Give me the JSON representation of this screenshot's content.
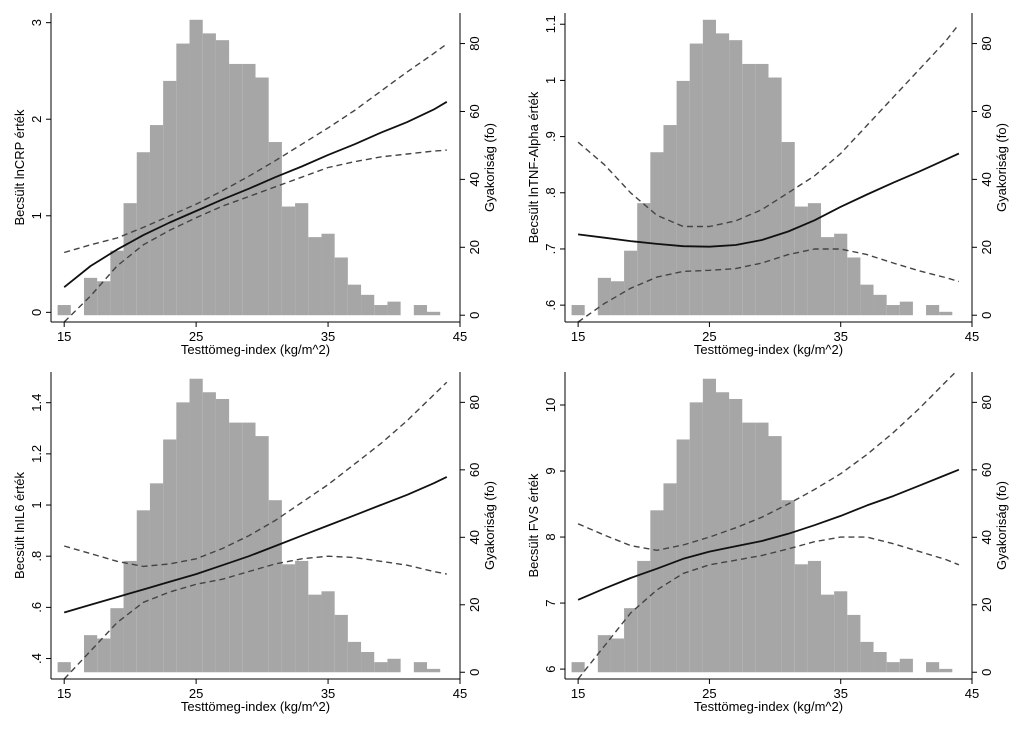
{
  "chart_data": [
    {
      "type": "bar",
      "xlabel": "Testtömeg-index (kg/m^2)",
      "ylabel": "Becsült lnCRP érték",
      "y2label": "Gyakoriság (fo)",
      "x_ticks": [
        "15",
        "25",
        "35",
        "45"
      ],
      "y_ticks": [
        "0",
        "1",
        "2",
        "3"
      ],
      "y2_ticks": [
        "0",
        "20",
        "40",
        "60",
        "80"
      ],
      "xlim": [
        14,
        45
      ],
      "ylim": [
        -0.1,
        3.1
      ],
      "y2lim": [
        -2,
        89
      ],
      "histogram": {
        "bin_width": 1,
        "bin_starts": [
          14.5,
          16.5,
          17.5,
          18.5,
          19.5,
          20.5,
          21.5,
          22.5,
          23.5,
          24.5,
          25.5,
          26.5,
          27.5,
          28.5,
          29.5,
          30.5,
          31.5,
          32.5,
          33.5,
          34.5,
          35.5,
          36.5,
          37.5,
          38.5,
          39.5,
          41.5,
          42.5
        ],
        "counts": [
          3,
          11,
          10,
          19,
          33,
          48,
          56,
          69,
          80,
          87,
          83,
          81,
          74,
          74,
          70,
          51,
          32,
          33,
          23,
          24,
          17,
          9,
          6,
          3,
          4,
          3,
          1
        ]
      },
      "series": [
        {
          "x": [
            15,
            17,
            19,
            21,
            23,
            25,
            27,
            29,
            31,
            33,
            35,
            37,
            39,
            41,
            43,
            44
          ],
          "y": [
            0.26,
            0.48,
            0.65,
            0.8,
            0.93,
            1.05,
            1.17,
            1.28,
            1.4,
            1.51,
            1.63,
            1.74,
            1.86,
            1.97,
            2.1,
            2.18
          ]
        },
        {
          "x": [
            15,
            17,
            19,
            21,
            23,
            25,
            27,
            29,
            31,
            33,
            35,
            37,
            39,
            41,
            43,
            44
          ],
          "y": [
            0.62,
            0.7,
            0.77,
            0.88,
            1.0,
            1.12,
            1.26,
            1.41,
            1.57,
            1.74,
            1.91,
            2.09,
            2.29,
            2.49,
            2.68,
            2.78
          ]
        },
        {
          "x": [
            15,
            17,
            19,
            21,
            23,
            25,
            27,
            29,
            31,
            33,
            35,
            37,
            39,
            41,
            43,
            44
          ],
          "y": [
            -0.1,
            0.17,
            0.48,
            0.7,
            0.85,
            0.98,
            1.1,
            1.2,
            1.3,
            1.4,
            1.5,
            1.56,
            1.61,
            1.64,
            1.67,
            1.68
          ]
        }
      ]
    },
    {
      "type": "bar",
      "xlabel": "Testtömeg-index (kg/m^2)",
      "ylabel": "Becsült lnTNF-Alpha érték",
      "y2label": "Gyakoriság (fo)",
      "x_ticks": [
        "15",
        "25",
        "35",
        "45"
      ],
      "y_ticks": [
        ".6",
        ".7",
        ".8",
        ".9",
        "1",
        "1.1"
      ],
      "y_tick_values": [
        0.6,
        0.7,
        0.8,
        0.9,
        1.0,
        1.1
      ],
      "y2_ticks": [
        "0",
        "20",
        "40",
        "60",
        "80"
      ],
      "xlim": [
        14,
        45
      ],
      "ylim": [
        0.57,
        1.12
      ],
      "y2lim": [
        -2,
        89
      ],
      "histogram": {
        "bin_width": 1,
        "bin_starts": [
          14.5,
          16.5,
          17.5,
          18.5,
          19.5,
          20.5,
          21.5,
          22.5,
          23.5,
          24.5,
          25.5,
          26.5,
          27.5,
          28.5,
          29.5,
          30.5,
          31.5,
          32.5,
          33.5,
          34.5,
          35.5,
          36.5,
          37.5,
          38.5,
          39.5,
          41.5,
          42.5
        ],
        "counts": [
          3,
          11,
          10,
          19,
          33,
          48,
          56,
          69,
          80,
          87,
          83,
          81,
          74,
          74,
          70,
          51,
          32,
          33,
          23,
          24,
          17,
          9,
          6,
          3,
          4,
          3,
          1
        ]
      },
      "series": [
        {
          "x": [
            15,
            17,
            19,
            21,
            23,
            25,
            27,
            29,
            31,
            33,
            35,
            37,
            39,
            41,
            43,
            44
          ],
          "y": [
            0.726,
            0.72,
            0.714,
            0.709,
            0.705,
            0.704,
            0.707,
            0.716,
            0.731,
            0.751,
            0.775,
            0.797,
            0.818,
            0.838,
            0.859,
            0.87
          ]
        },
        {
          "x": [
            15,
            17,
            19,
            21,
            23,
            25,
            27,
            29,
            31,
            33,
            35,
            37,
            39,
            41,
            43,
            44
          ],
          "y": [
            0.89,
            0.85,
            0.8,
            0.76,
            0.74,
            0.74,
            0.75,
            0.77,
            0.8,
            0.83,
            0.87,
            0.92,
            0.97,
            1.02,
            1.07,
            1.1
          ]
        },
        {
          "x": [
            15,
            17,
            19,
            21,
            23,
            25,
            27,
            29,
            31,
            33,
            35,
            37,
            39,
            41,
            43,
            44
          ],
          "y": [
            0.57,
            0.603,
            0.63,
            0.65,
            0.66,
            0.662,
            0.665,
            0.675,
            0.69,
            0.7,
            0.7,
            0.69,
            0.675,
            0.661,
            0.649,
            0.642
          ]
        }
      ]
    },
    {
      "type": "bar",
      "xlabel": "Testtömeg-index (kg/m^2)",
      "ylabel": "Becsült lnIL6 érték",
      "y2label": "Gyakoriság (fo)",
      "x_ticks": [
        "15",
        "25",
        "35",
        "45"
      ],
      "y_ticks": [
        ".4",
        ".6",
        ".8",
        "1",
        "1.2",
        "1.4"
      ],
      "y_tick_values": [
        0.4,
        0.6,
        0.8,
        1.0,
        1.2,
        1.4
      ],
      "y2_ticks": [
        "0",
        "20",
        "40",
        "60",
        "80"
      ],
      "xlim": [
        14,
        45
      ],
      "ylim": [
        0.32,
        1.52
      ],
      "y2lim": [
        -2,
        89
      ],
      "histogram": {
        "bin_width": 1,
        "bin_starts": [
          14.5,
          16.5,
          17.5,
          18.5,
          19.5,
          20.5,
          21.5,
          22.5,
          23.5,
          24.5,
          25.5,
          26.5,
          27.5,
          28.5,
          29.5,
          30.5,
          31.5,
          32.5,
          33.5,
          34.5,
          35.5,
          36.5,
          37.5,
          38.5,
          39.5,
          41.5,
          42.5
        ],
        "counts": [
          3,
          11,
          10,
          19,
          33,
          48,
          56,
          69,
          80,
          87,
          83,
          81,
          74,
          74,
          70,
          51,
          32,
          33,
          23,
          24,
          17,
          9,
          6,
          3,
          4,
          3,
          1
        ]
      },
      "series": [
        {
          "x": [
            15,
            17,
            19,
            21,
            23,
            25,
            27,
            29,
            31,
            33,
            35,
            37,
            39,
            41,
            43,
            44
          ],
          "y": [
            0.58,
            0.61,
            0.64,
            0.67,
            0.7,
            0.73,
            0.765,
            0.8,
            0.84,
            0.88,
            0.92,
            0.96,
            1.0,
            1.04,
            1.085,
            1.11
          ]
        },
        {
          "x": [
            15,
            17,
            19,
            21,
            23,
            25,
            27,
            29,
            31,
            33,
            35,
            37,
            39,
            41,
            43,
            44
          ],
          "y": [
            0.84,
            0.81,
            0.78,
            0.76,
            0.77,
            0.79,
            0.83,
            0.88,
            0.94,
            1.01,
            1.08,
            1.16,
            1.24,
            1.33,
            1.43,
            1.48
          ]
        },
        {
          "x": [
            15,
            17,
            19,
            21,
            23,
            25,
            27,
            29,
            31,
            33,
            35,
            37,
            39,
            41,
            43,
            44
          ],
          "y": [
            0.32,
            0.43,
            0.54,
            0.62,
            0.66,
            0.69,
            0.71,
            0.74,
            0.77,
            0.79,
            0.8,
            0.795,
            0.78,
            0.765,
            0.74,
            0.73
          ]
        }
      ]
    },
    {
      "type": "bar",
      "xlabel": "Testtömeg-index (kg/m^2)",
      "ylabel": "Becsült FVS érték",
      "y2label": "Gyakoriság (fo)",
      "x_ticks": [
        "15",
        "25",
        "35",
        "45"
      ],
      "y_ticks": [
        "6",
        "7",
        "8",
        "9",
        "10"
      ],
      "y_tick_values": [
        6,
        7,
        8,
        9,
        10
      ],
      "y2_ticks": [
        "0",
        "20",
        "40",
        "60",
        "80"
      ],
      "xlim": [
        14,
        45
      ],
      "ylim": [
        5.85,
        10.5
      ],
      "y2lim": [
        -2,
        89
      ],
      "histogram": {
        "bin_width": 1,
        "bin_starts": [
          14.5,
          16.5,
          17.5,
          18.5,
          19.5,
          20.5,
          21.5,
          22.5,
          23.5,
          24.5,
          25.5,
          26.5,
          27.5,
          28.5,
          29.5,
          30.5,
          31.5,
          32.5,
          33.5,
          34.5,
          35.5,
          36.5,
          37.5,
          38.5,
          39.5,
          41.5,
          42.5
        ],
        "counts": [
          3,
          11,
          10,
          19,
          33,
          48,
          56,
          69,
          80,
          87,
          83,
          81,
          74,
          74,
          70,
          51,
          32,
          33,
          23,
          24,
          17,
          9,
          6,
          3,
          4,
          3,
          1
        ]
      },
      "series": [
        {
          "x": [
            15,
            17,
            19,
            21,
            23,
            25,
            27,
            29,
            31,
            33,
            35,
            37,
            39,
            41,
            43,
            44
          ],
          "y": [
            7.05,
            7.22,
            7.38,
            7.52,
            7.67,
            7.78,
            7.86,
            7.94,
            8.05,
            8.18,
            8.32,
            8.48,
            8.62,
            8.78,
            8.94,
            9.02
          ]
        },
        {
          "x": [
            15,
            17,
            19,
            21,
            23,
            25,
            27,
            29,
            31,
            33,
            35,
            37,
            39,
            41,
            43,
            44
          ],
          "y": [
            8.2,
            8.03,
            7.87,
            7.8,
            7.88,
            8.0,
            8.14,
            8.3,
            8.5,
            8.72,
            8.96,
            9.25,
            9.58,
            9.95,
            10.35,
            10.55
          ]
        },
        {
          "x": [
            15,
            17,
            19,
            21,
            23,
            25,
            27,
            29,
            31,
            33,
            35,
            37,
            39,
            41,
            43,
            44
          ],
          "y": [
            5.85,
            6.35,
            6.85,
            7.2,
            7.45,
            7.58,
            7.65,
            7.72,
            7.82,
            7.93,
            8.0,
            8.0,
            7.9,
            7.78,
            7.66,
            7.58
          ]
        }
      ]
    }
  ]
}
